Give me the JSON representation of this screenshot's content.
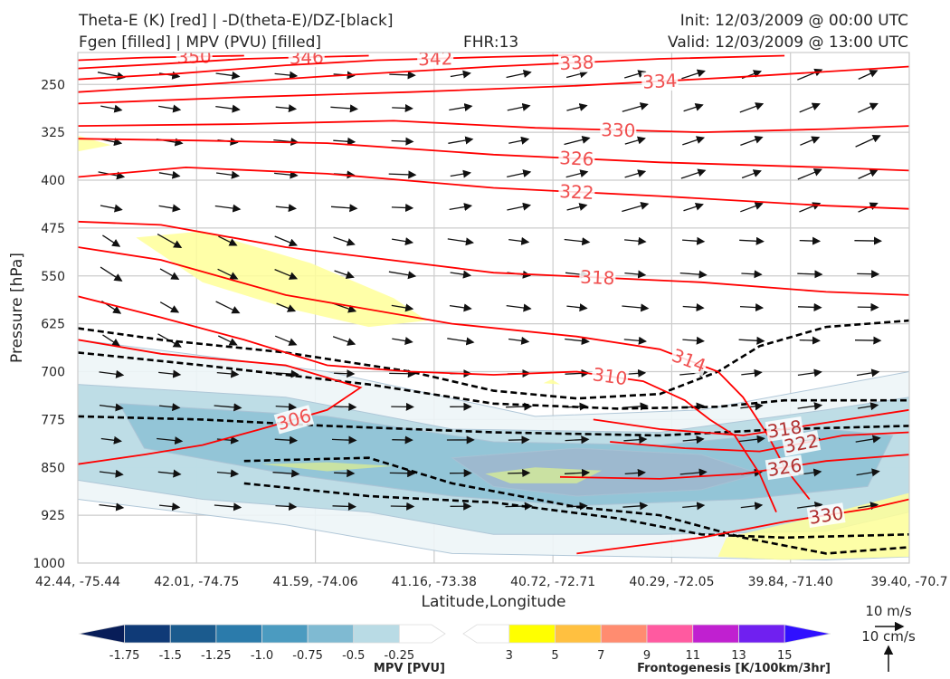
{
  "header": {
    "title_left_1": "Theta-E (K) [red] | -D(theta-E)/DZ-[black]",
    "title_left_2": "Fgen [filled] | MPV (PVU) [filled]",
    "fhr": "FHR:13",
    "init": "Init: 12/03/2009 @ 00:00 UTC",
    "valid": "Valid: 12/03/2009 @ 13:00 UTC"
  },
  "chart_data": {
    "type": "cross-section",
    "xlabel": "Latitude,Longitude",
    "ylabel": "Pressure [hPa]",
    "x_ticks": [
      "42.44, -75.44",
      "42.01, -74.75",
      "41.59, -74.06",
      "41.16, -73.38",
      "40.72, -72.71",
      "40.29, -72.05",
      "39.84, -71.40",
      "39.40, -70.7"
    ],
    "y_ticks": [
      250,
      325,
      400,
      475,
      550,
      625,
      700,
      775,
      850,
      925,
      1000
    ],
    "ylim": [
      1000,
      200
    ],
    "grid": true,
    "theta_e_contours": [
      {
        "level": 350,
        "label": "350",
        "points": [
          [
            0.0,
            212
          ],
          [
            0.08,
            208
          ],
          [
            0.2,
            205
          ]
        ]
      },
      {
        "level": 346,
        "label": "346",
        "points": [
          [
            0.0,
            225
          ],
          [
            0.1,
            218
          ],
          [
            0.2,
            210
          ],
          [
            0.35,
            205
          ]
        ]
      },
      {
        "level": 342,
        "label": "342",
        "points": [
          [
            0.0,
            242
          ],
          [
            0.12,
            233
          ],
          [
            0.25,
            220
          ],
          [
            0.36,
            212
          ],
          [
            0.5,
            207
          ],
          [
            0.6,
            204
          ]
        ]
      },
      {
        "level": 338,
        "label": "338",
        "points": [
          [
            0.0,
            262
          ],
          [
            0.15,
            250
          ],
          [
            0.3,
            237
          ],
          [
            0.5,
            222
          ],
          [
            0.7,
            210
          ],
          [
            0.85,
            205
          ]
        ]
      },
      {
        "level": 334,
        "label": "334",
        "points": [
          [
            0.0,
            280
          ],
          [
            0.2,
            270
          ],
          [
            0.4,
            262
          ],
          [
            0.6,
            252
          ],
          [
            0.8,
            238
          ],
          [
            1.0,
            222
          ]
        ]
      },
      {
        "level": 330,
        "label": "330",
        "points": [
          [
            0.0,
            315
          ],
          [
            0.2,
            312
          ],
          [
            0.38,
            307
          ],
          [
            0.55,
            318
          ],
          [
            0.75,
            325
          ],
          [
            0.9,
            320
          ],
          [
            1.0,
            315
          ]
        ]
      },
      {
        "level": 326,
        "label": "326",
        "points": [
          [
            0.0,
            335
          ],
          [
            0.15,
            338
          ],
          [
            0.3,
            342
          ],
          [
            0.5,
            360
          ],
          [
            0.7,
            372
          ],
          [
            0.9,
            380
          ],
          [
            1.0,
            385
          ]
        ]
      },
      {
        "level": 322,
        "label": "322",
        "points": [
          [
            0.0,
            395
          ],
          [
            0.13,
            380
          ],
          [
            0.3,
            390
          ],
          [
            0.5,
            412
          ],
          [
            0.7,
            425
          ],
          [
            0.9,
            440
          ],
          [
            1.0,
            445
          ]
        ]
      },
      {
        "level": 318,
        "label": "318",
        "points": [
          [
            0.0,
            465
          ],
          [
            0.1,
            470
          ],
          [
            0.25,
            505
          ],
          [
            0.5,
            545
          ],
          [
            0.75,
            560
          ],
          [
            0.9,
            575
          ],
          [
            1.0,
            580
          ]
        ]
      },
      {
        "level": 314,
        "label": "314",
        "points": [
          [
            0.0,
            505
          ],
          [
            0.1,
            525
          ],
          [
            0.25,
            580
          ],
          [
            0.45,
            625
          ],
          [
            0.6,
            645
          ],
          [
            0.7,
            665
          ],
          [
            0.77,
            700
          ],
          [
            0.8,
            740
          ],
          [
            0.83,
            800
          ],
          [
            0.85,
            850
          ],
          [
            0.88,
            900
          ]
        ]
      },
      {
        "level": 310,
        "label": "310",
        "points": [
          [
            0.0,
            582
          ],
          [
            0.1,
            615
          ],
          [
            0.2,
            650
          ],
          [
            0.3,
            690
          ],
          [
            0.4,
            700
          ],
          [
            0.5,
            705
          ],
          [
            0.6,
            700
          ],
          [
            0.68,
            715
          ],
          [
            0.73,
            745
          ],
          [
            0.76,
            775
          ],
          [
            0.79,
            800
          ],
          [
            0.82,
            860
          ],
          [
            0.84,
            920
          ]
        ]
      },
      {
        "level": 306,
        "label": "306",
        "points": [
          [
            0.0,
            650
          ],
          [
            0.1,
            672
          ],
          [
            0.25,
            690
          ],
          [
            0.34,
            725
          ],
          [
            0.3,
            760
          ],
          [
            0.22,
            790
          ],
          [
            0.15,
            815
          ],
          [
            0.08,
            830
          ],
          [
            0.0,
            845
          ]
        ]
      },
      {
        "level": 318,
        "label": "318",
        "points": [
          [
            0.62,
            775
          ],
          [
            0.7,
            790
          ],
          [
            0.8,
            800
          ],
          [
            0.9,
            780
          ],
          [
            1.0,
            760
          ]
        ]
      },
      {
        "level": 322,
        "label": "322",
        "points": [
          [
            0.64,
            810
          ],
          [
            0.73,
            820
          ],
          [
            0.82,
            825
          ],
          [
            0.92,
            800
          ],
          [
            1.0,
            795
          ]
        ]
      },
      {
        "level": 326,
        "label": "326",
        "points": [
          [
            0.58,
            865
          ],
          [
            0.7,
            868
          ],
          [
            0.8,
            860
          ],
          [
            0.9,
            840
          ],
          [
            1.0,
            830
          ]
        ]
      },
      {
        "level": 330,
        "label": "330",
        "points": [
          [
            0.6,
            985
          ],
          [
            0.75,
            960
          ],
          [
            0.85,
            935
          ],
          [
            0.95,
            915
          ],
          [
            1.0,
            900
          ]
        ]
      }
    ],
    "dthetae_dz_contours": [
      {
        "points": [
          [
            0.0,
            632
          ],
          [
            0.1,
            650
          ],
          [
            0.25,
            670
          ],
          [
            0.4,
            700
          ],
          [
            0.5,
            730
          ],
          [
            0.6,
            742
          ],
          [
            0.7,
            735
          ],
          [
            0.77,
            700
          ],
          [
            0.82,
            660
          ],
          [
            0.9,
            630
          ],
          [
            1.0,
            620
          ]
        ]
      },
      {
        "points": [
          [
            0.0,
            670
          ],
          [
            0.15,
            690
          ],
          [
            0.35,
            720
          ],
          [
            0.5,
            750
          ],
          [
            0.65,
            758
          ],
          [
            0.77,
            755
          ],
          [
            0.85,
            745
          ],
          [
            1.0,
            745
          ]
        ]
      },
      {
        "points": [
          [
            0.0,
            770
          ],
          [
            0.15,
            775
          ],
          [
            0.3,
            785
          ],
          [
            0.5,
            795
          ],
          [
            0.7,
            800
          ],
          [
            0.85,
            790
          ],
          [
            1.0,
            785
          ]
        ]
      },
      {
        "points": [
          [
            0.2,
            840
          ],
          [
            0.35,
            835
          ],
          [
            0.45,
            875
          ],
          [
            0.6,
            912
          ],
          [
            0.7,
            925
          ],
          [
            0.8,
            960
          ],
          [
            0.9,
            985
          ],
          [
            1.0,
            975
          ]
        ]
      },
      {
        "points": [
          [
            0.2,
            875
          ],
          [
            0.35,
            895
          ],
          [
            0.5,
            905
          ],
          [
            0.65,
            930
          ],
          [
            0.75,
            955
          ],
          [
            0.85,
            960
          ],
          [
            1.0,
            955
          ]
        ]
      }
    ],
    "mpv_regions": [
      {
        "level": -0.25,
        "color": "#eef6f8",
        "points": [
          [
            0.0,
            650
          ],
          [
            0.3,
            700
          ],
          [
            0.55,
            770
          ],
          [
            0.75,
            760
          ],
          [
            1.0,
            700
          ],
          [
            1.0,
            990
          ],
          [
            0.9,
            995
          ],
          [
            0.45,
            985
          ],
          [
            0.25,
            940
          ],
          [
            0.0,
            900
          ]
        ]
      },
      {
        "level": -0.5,
        "color": "#b9dbe5",
        "points": [
          [
            0.0,
            720
          ],
          [
            0.25,
            740
          ],
          [
            0.45,
            790
          ],
          [
            0.7,
            795
          ],
          [
            0.9,
            760
          ],
          [
            1.0,
            740
          ],
          [
            1.0,
            920
          ],
          [
            0.9,
            950
          ],
          [
            0.7,
            955
          ],
          [
            0.5,
            955
          ],
          [
            0.35,
            920
          ],
          [
            0.15,
            900
          ],
          [
            0.0,
            870
          ]
        ]
      },
      {
        "level": -0.75,
        "color": "#8fc3d6",
        "points": [
          [
            0.05,
            750
          ],
          [
            0.3,
            770
          ],
          [
            0.5,
            810
          ],
          [
            0.7,
            815
          ],
          [
            0.9,
            790
          ],
          [
            0.98,
            800
          ],
          [
            0.95,
            880
          ],
          [
            0.8,
            900
          ],
          [
            0.6,
            910
          ],
          [
            0.45,
            895
          ],
          [
            0.25,
            860
          ],
          [
            0.08,
            820
          ]
        ]
      },
      {
        "level": -1.0,
        "color": "#9fb8cf",
        "points": [
          [
            0.45,
            835
          ],
          [
            0.6,
            820
          ],
          [
            0.75,
            830
          ],
          [
            0.82,
            860
          ],
          [
            0.75,
            885
          ],
          [
            0.6,
            895
          ],
          [
            0.5,
            880
          ]
        ]
      }
    ],
    "fgen_regions": [
      {
        "level": 3,
        "color": "#ffff99",
        "points": [
          [
            0.07,
            490
          ],
          [
            0.15,
            480
          ],
          [
            0.28,
            530
          ],
          [
            0.38,
            585
          ],
          [
            0.42,
            620
          ],
          [
            0.35,
            630
          ],
          [
            0.25,
            600
          ],
          [
            0.15,
            560
          ]
        ]
      },
      {
        "level": 3,
        "color": "#ffff99",
        "points": [
          [
            0.78,
            960
          ],
          [
            0.88,
            930
          ],
          [
            0.97,
            900
          ],
          [
            1.0,
            890
          ],
          [
            1.0,
            990
          ],
          [
            0.85,
            995
          ],
          [
            0.77,
            990
          ]
        ]
      },
      {
        "level": 3,
        "color": "#d2e89a",
        "points": [
          [
            0.49,
            860
          ],
          [
            0.55,
            850
          ],
          [
            0.63,
            855
          ],
          [
            0.6,
            875
          ],
          [
            0.52,
            875
          ]
        ]
      },
      {
        "level": 3,
        "color": "#d2e89a",
        "points": [
          [
            0.22,
            845
          ],
          [
            0.3,
            842
          ],
          [
            0.38,
            848
          ],
          [
            0.3,
            856
          ]
        ]
      },
      {
        "level": 3,
        "color": "#ffff99",
        "points": [
          [
            0.0,
            330
          ],
          [
            0.04,
            345
          ],
          [
            0.0,
            355
          ]
        ]
      },
      {
        "level": 3,
        "color": "#ffff99",
        "points": [
          [
            0.56,
            718
          ],
          [
            0.57,
            712
          ],
          [
            0.58,
            720
          ]
        ]
      }
    ],
    "mpv_colorbar": {
      "label": "MPV [PVU]",
      "ticks": [
        "-1.75",
        "-1.5",
        "-1.25",
        "-1.0",
        "-0.75",
        "-0.5",
        "-0.25"
      ],
      "colors": [
        "#081d58",
        "#0f3a77",
        "#1b5b8e",
        "#2b7bab",
        "#4b9bc0",
        "#7fbad2",
        "#b9dbe5",
        "#ffffff"
      ]
    },
    "fgen_colorbar": {
      "label": "Frontogenesis [K/100km/3hr]",
      "ticks": [
        "3",
        "5",
        "7",
        "9",
        "11",
        "13",
        "15"
      ],
      "colors": [
        "#ffffff",
        "#ffff00",
        "#ffc040",
        "#ff8c70",
        "#ff5aa0",
        "#c020d0",
        "#7020f0",
        "#3010ff"
      ]
    },
    "wind_reference": {
      "u_label": "10 m/s",
      "w_label": "10 cm/s"
    }
  }
}
